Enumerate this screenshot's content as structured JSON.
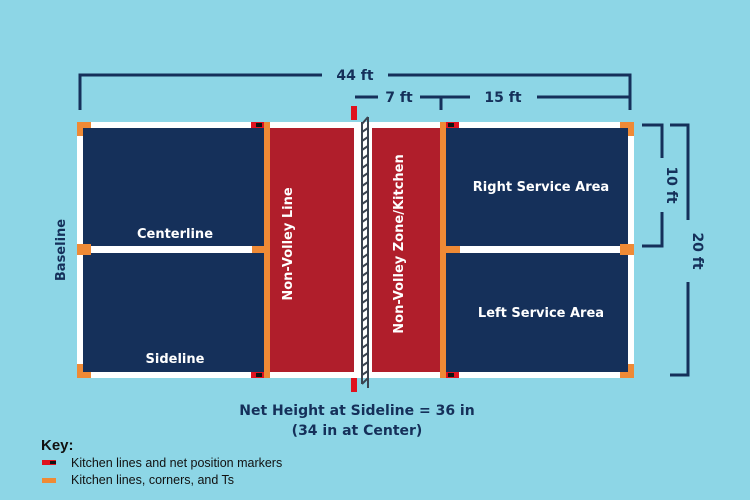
{
  "colors": {
    "background": "#8dd6e6",
    "court": "#15305a",
    "kitchen": "#b01e2b",
    "lines": "#ffffff",
    "marker_orange": "#ef8a35",
    "marker_red": "#e0121e"
  },
  "dimensions": {
    "total_length": "44 ft",
    "kitchen_depth": "7 ft",
    "service_depth": "15 ft",
    "service_width": "10 ft",
    "court_width": "20 ft"
  },
  "labels": {
    "baseline": "Baseline",
    "centerline": "Centerline",
    "sideline": "Sideline",
    "non_volley_line": "Non-Volley Line",
    "kitchen": "Non-Volley Zone/Kitchen",
    "right_service": "Right Service Area",
    "left_service": "Left Service Area"
  },
  "net_height": {
    "line1": "Net Height at Sideline = 36 in",
    "line2": "(34 in at Center)"
  },
  "key": {
    "title": "Key:",
    "items": [
      {
        "label": "Kitchen lines and net position markers",
        "color": "#e0121e"
      },
      {
        "label": "Kitchen lines, corners, and Ts",
        "color": "#ef8a35"
      }
    ]
  }
}
